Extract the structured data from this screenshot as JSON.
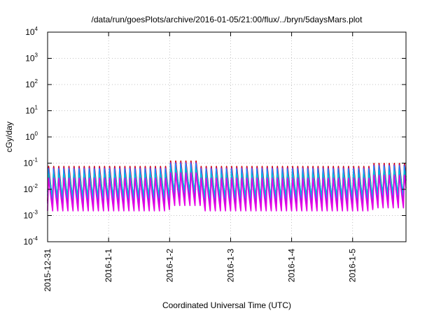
{
  "chart_data": {
    "type": "line",
    "title": "/data/run/goesPlots/archive/2016-01-05/21:00/flux/../bryn/5daysMars.plot",
    "xlabel": "Coordinated Universal Time (UTC)",
    "ylabel": "cGy/day",
    "yscale": "log",
    "ylim": [
      0.0001,
      10000
    ],
    "xlim": [
      "2015-12-31T00:00",
      "2016-01-05T21:00"
    ],
    "grid": true,
    "y_ticks": [
      {
        "base": "10",
        "exp": "-4"
      },
      {
        "base": "10",
        "exp": "-3"
      },
      {
        "base": "10",
        "exp": "-2"
      },
      {
        "base": "10",
        "exp": "-1"
      },
      {
        "base": "10",
        "exp": "0"
      },
      {
        "base": "10",
        "exp": "1"
      },
      {
        "base": "10",
        "exp": "2"
      },
      {
        "base": "10",
        "exp": "3"
      },
      {
        "base": "10",
        "exp": "4"
      }
    ],
    "x_ticks": [
      "2015-12-31",
      "2016-1-1",
      "2016-1-2",
      "2016-1-3",
      "2016-1-4",
      "2016-1-5"
    ],
    "series": [
      {
        "color": "#cc0000",
        "peak": 0.085,
        "trough": 0.0035,
        "phase": 0.0
      },
      {
        "color": "#8a2be2",
        "peak": 0.07,
        "trough": 0.0025,
        "phase": 0.01
      },
      {
        "color": "#1e90ff",
        "peak": 0.06,
        "trough": 0.0045,
        "phase": 0.02
      },
      {
        "color": "#00bcd4",
        "peak": 0.04,
        "trough": 0.006,
        "phase": 0.03
      },
      {
        "color": "#e600e6",
        "peak": 0.03,
        "trough": 0.0015,
        "phase": 0.0
      }
    ],
    "cycle_hours": 2.0,
    "events": [
      {
        "start": "2016-01-02T00:00",
        "end": "2016-01-02T12:00",
        "factor": 1.6
      },
      {
        "start": "2016-01-05T08:00",
        "end": "2016-01-05T21:00",
        "factor": 1.3
      }
    ]
  }
}
